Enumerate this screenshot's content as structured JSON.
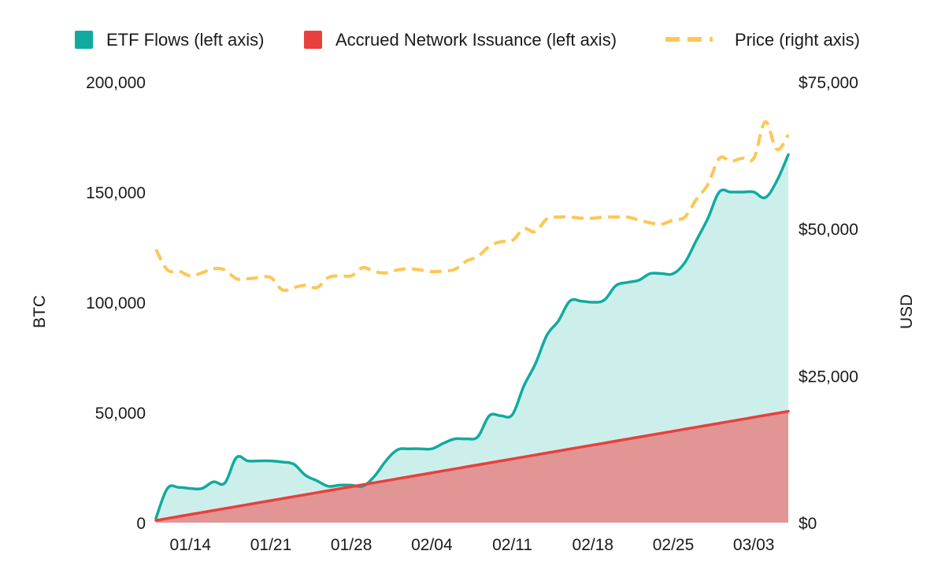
{
  "chart_data": {
    "type": "area",
    "x_dates": [
      "01/11",
      "01/12",
      "01/13",
      "01/14",
      "01/15",
      "01/16",
      "01/17",
      "01/18",
      "01/19",
      "01/20",
      "01/21",
      "01/22",
      "01/23",
      "01/24",
      "01/25",
      "01/26",
      "01/27",
      "01/28",
      "01/29",
      "01/30",
      "01/31",
      "02/01",
      "02/02",
      "02/03",
      "02/04",
      "02/05",
      "02/06",
      "02/07",
      "02/08",
      "02/09",
      "02/10",
      "02/11",
      "02/12",
      "02/13",
      "02/14",
      "02/15",
      "02/16",
      "02/17",
      "02/18",
      "02/19",
      "02/20",
      "02/21",
      "02/22",
      "02/23",
      "02/24",
      "02/25",
      "02/26",
      "02/27",
      "02/28",
      "02/29",
      "03/01",
      "03/02",
      "03/03",
      "03/04",
      "03/05",
      "03/06"
    ],
    "x_tick_labels": [
      "01/14",
      "01/21",
      "01/28",
      "02/04",
      "02/11",
      "02/18",
      "02/25",
      "03/03"
    ],
    "series": [
      {
        "name": "ETF Flows (left axis)",
        "axis": "left",
        "color": "#10ab9f",
        "fill": "#cdefec",
        "style": "area",
        "values": [
          2000,
          15500,
          16000,
          15500,
          15500,
          18500,
          18000,
          29500,
          28000,
          28000,
          28000,
          27500,
          26500,
          21500,
          19000,
          16500,
          17000,
          17000,
          16500,
          21000,
          28000,
          33000,
          33500,
          33500,
          33500,
          36000,
          38000,
          38000,
          39000,
          48500,
          48500,
          49000,
          62000,
          72000,
          85000,
          91500,
          100500,
          100500,
          100000,
          101000,
          107500,
          109000,
          110000,
          113000,
          113000,
          113000,
          118000,
          128000,
          138000,
          150000,
          150000,
          150000,
          150000,
          147500,
          155000,
          167000
        ]
      },
      {
        "name": "Accrued Network Issuance (left axis)",
        "axis": "left",
        "color": "#e8403c",
        "fill": "#e19594",
        "style": "area",
        "values": [
          1000,
          1900,
          2800,
          3700,
          4600,
          5500,
          6400,
          7300,
          8200,
          9100,
          10000,
          10900,
          11800,
          12700,
          13600,
          14500,
          15400,
          16300,
          17200,
          18100,
          19000,
          19900,
          20800,
          21700,
          22600,
          23500,
          24400,
          25300,
          26200,
          27100,
          28000,
          28900,
          29800,
          30700,
          31600,
          32500,
          33400,
          34300,
          35200,
          36100,
          37000,
          37900,
          38800,
          39700,
          40600,
          41500,
          42400,
          43300,
          44200,
          45100,
          46000,
          46900,
          47800,
          48700,
          49600,
          50500
        ]
      },
      {
        "name": "Price (right axis)",
        "axis": "right",
        "color": "#ffc555",
        "style": "dashed",
        "values": [
          46500,
          43000,
          42800,
          42000,
          42500,
          43200,
          43000,
          41500,
          41500,
          41700,
          41700,
          39600,
          40000,
          40400,
          40000,
          41700,
          42000,
          42000,
          43400,
          42700,
          42500,
          43000,
          43200,
          43000,
          42700,
          42800,
          43100,
          44500,
          45300,
          47000,
          47800,
          48000,
          50000,
          49500,
          51700,
          52000,
          52000,
          51800,
          51800,
          52000,
          52000,
          52000,
          51500,
          51000,
          50800,
          51500,
          52000,
          55000,
          57500,
          62000,
          61500,
          62000,
          62000,
          68200,
          63500,
          66000
        ]
      }
    ],
    "y_left": {
      "label": "BTC",
      "min": 0,
      "max": 200000,
      "ticks": [
        "0",
        "50,000",
        "100,000",
        "150,000",
        "200,000"
      ]
    },
    "y_right": {
      "label": "USD",
      "min": 0,
      "max": 75000,
      "ticks": [
        "$0",
        "$25,000",
        "$50,000",
        "$75,000"
      ]
    },
    "grid": false,
    "legend_placement": "top"
  }
}
